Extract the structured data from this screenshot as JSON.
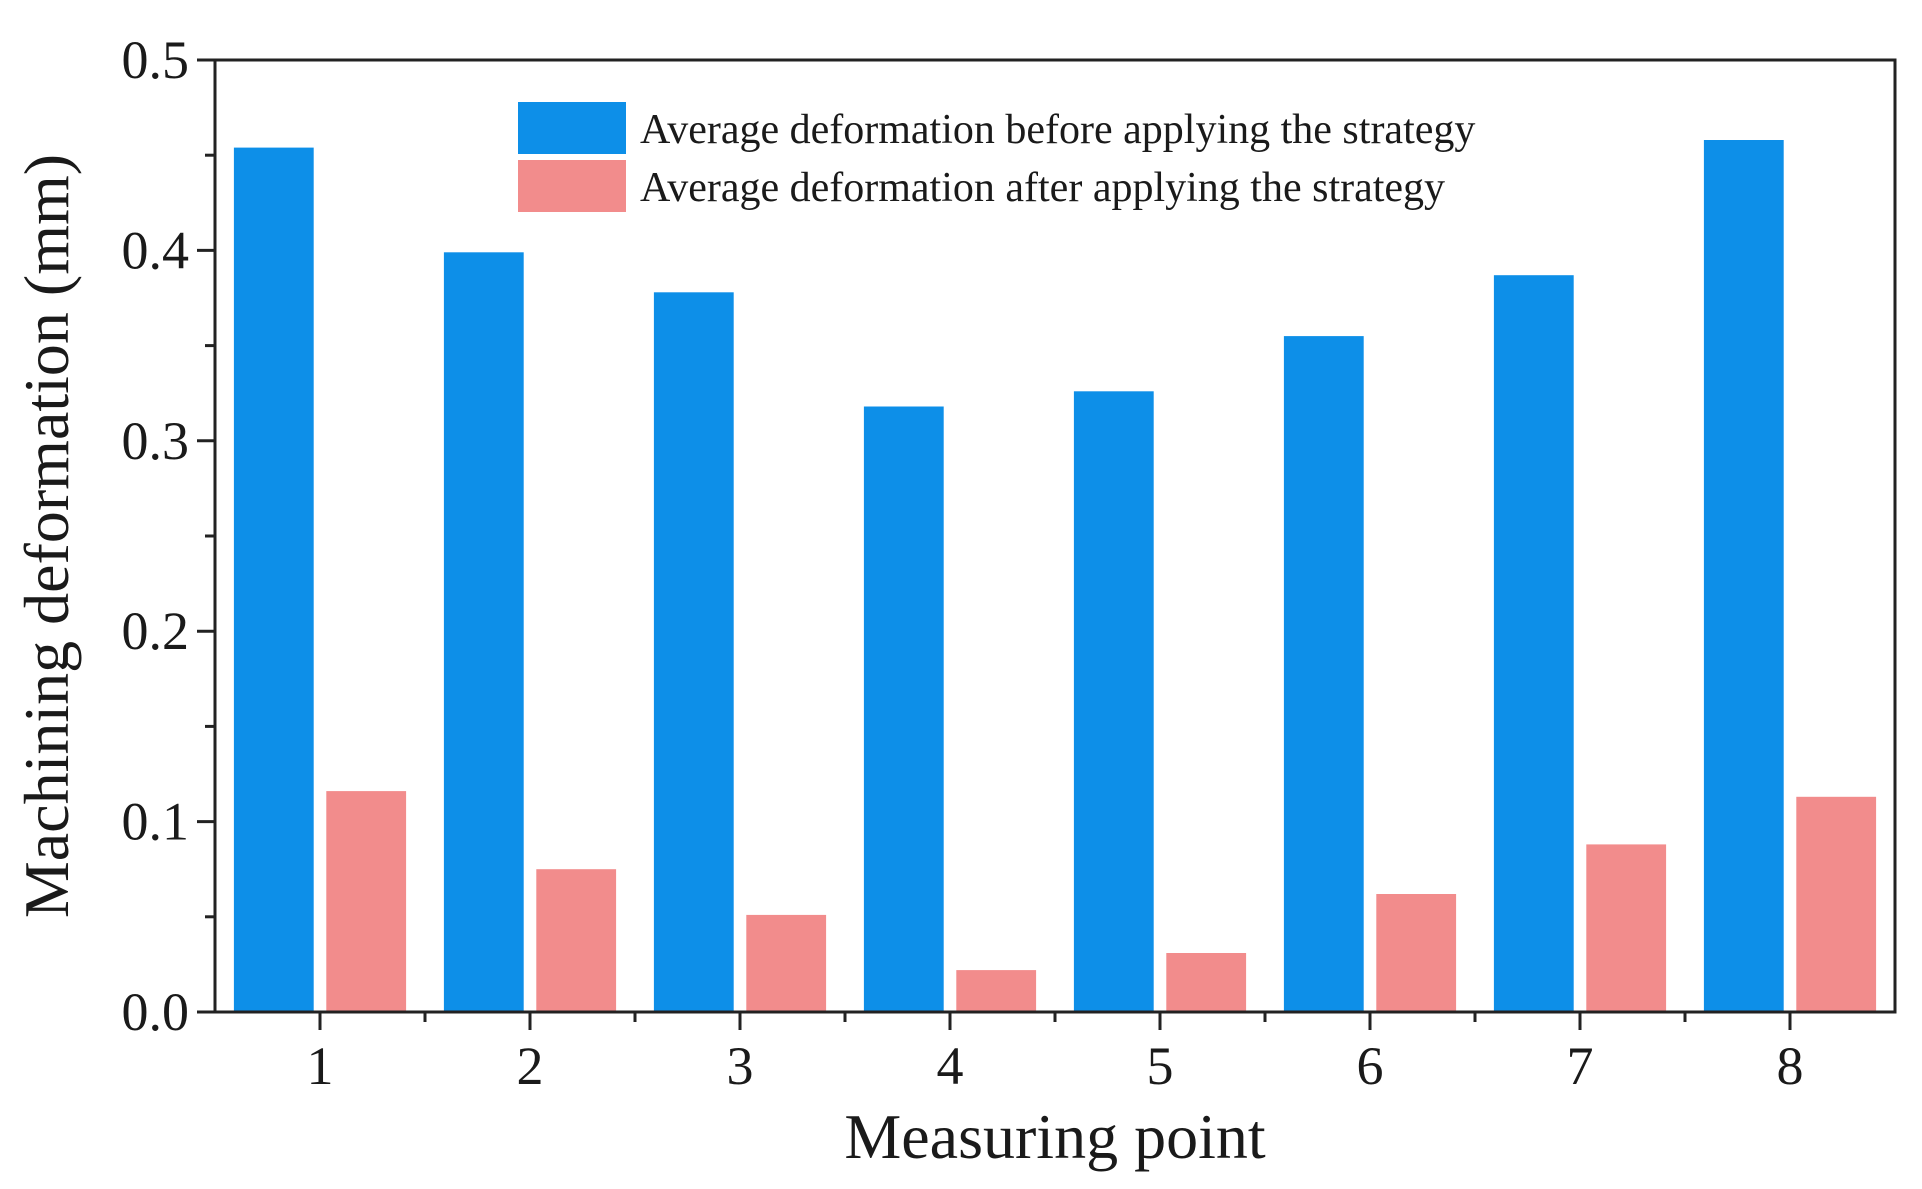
{
  "chart_data": {
    "type": "bar",
    "title": "",
    "xlabel": "Measuring point",
    "ylabel": "Machining deformation (mm)",
    "categories": [
      "1",
      "2",
      "3",
      "4",
      "5",
      "6",
      "7",
      "8"
    ],
    "series": [
      {
        "name": "Average deformation before applying the strategy",
        "color": "#0d8fe8",
        "values": [
          0.454,
          0.399,
          0.378,
          0.318,
          0.326,
          0.355,
          0.387,
          0.458
        ]
      },
      {
        "name": "Average deformation after applying the strategy",
        "color": "#f28c8c",
        "values": [
          0.116,
          0.075,
          0.051,
          0.022,
          0.031,
          0.062,
          0.088,
          0.113
        ]
      }
    ],
    "ylim": [
      0,
      0.5
    ],
    "yticks": [
      "0.0",
      "0.1",
      "0.2",
      "0.3",
      "0.4",
      "0.5"
    ],
    "grid": false,
    "legend_position": "top-center"
  }
}
